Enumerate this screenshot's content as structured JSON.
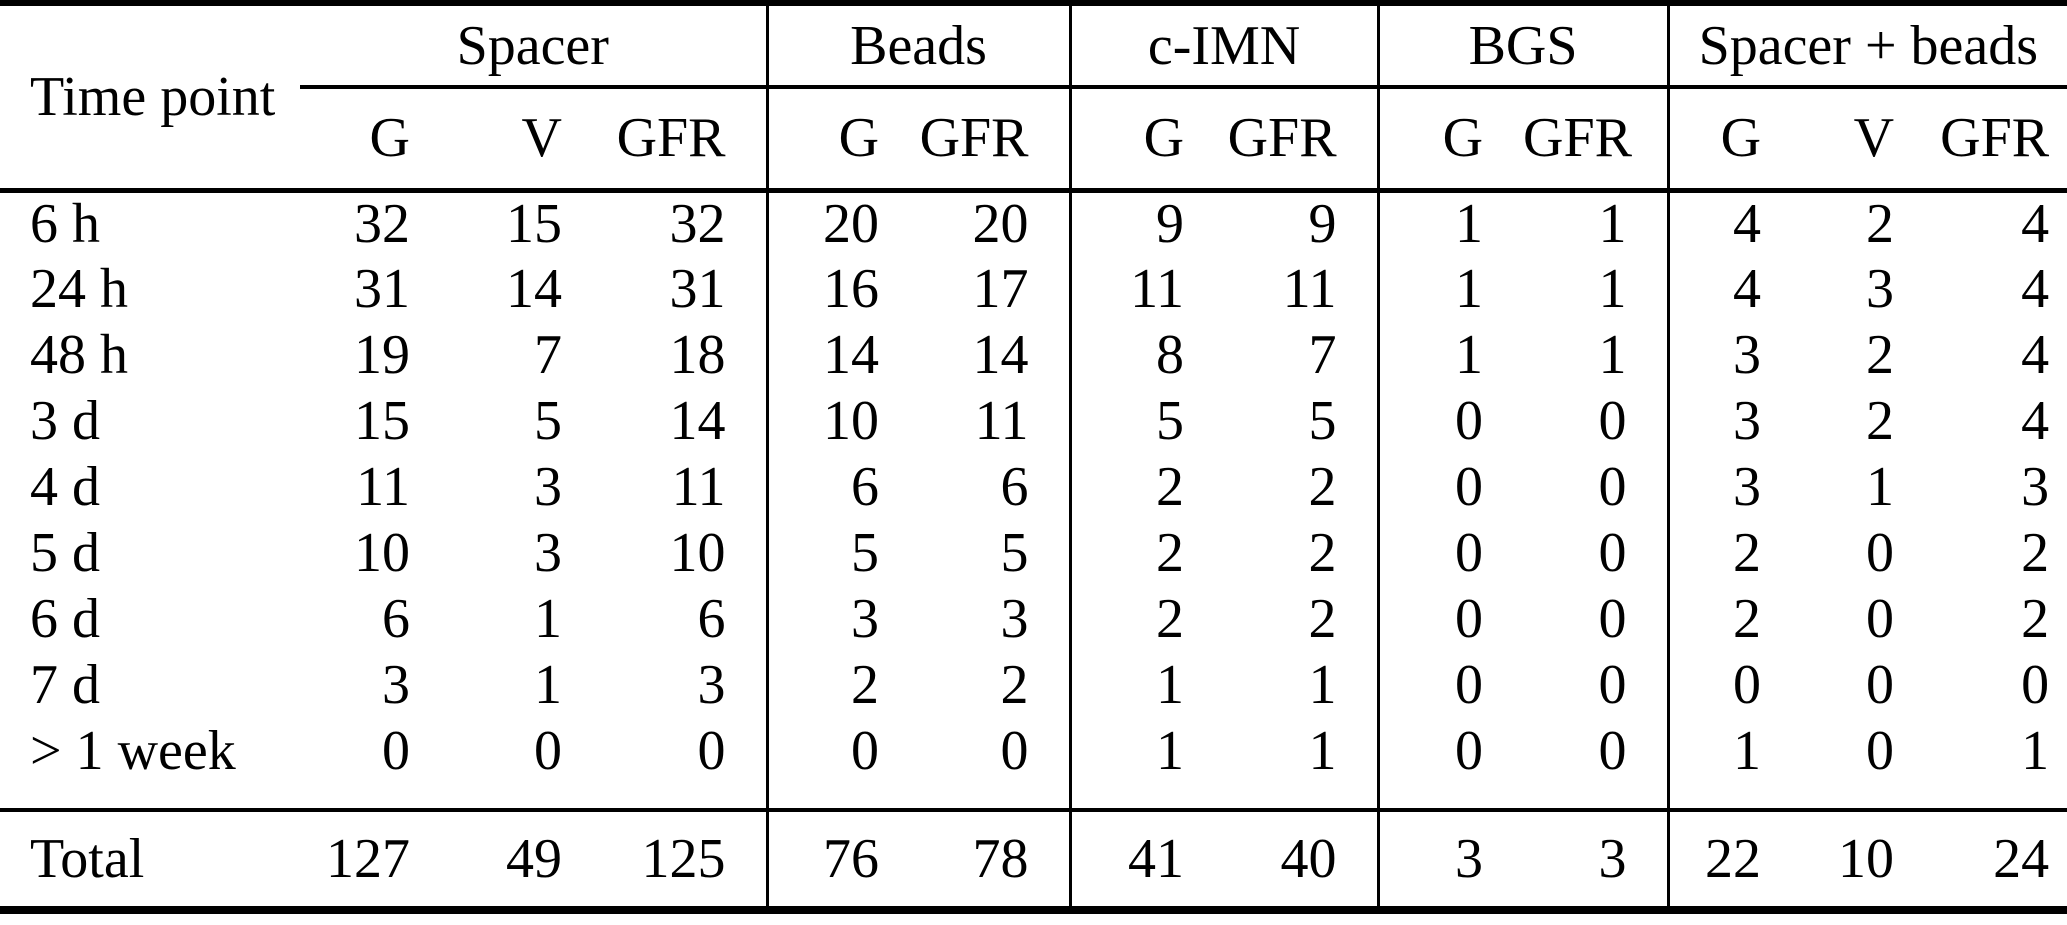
{
  "colors": {
    "text": "#000000",
    "background": "#ffffff",
    "rules": "#000000"
  },
  "table": {
    "row_header_label": "Time point",
    "groups": [
      {
        "label": "Spacer",
        "cols": [
          "G",
          "V",
          "GFR"
        ]
      },
      {
        "label": "Beads",
        "cols": [
          "G",
          "GFR"
        ]
      },
      {
        "label": "c-IMN",
        "cols": [
          "G",
          "GFR"
        ]
      },
      {
        "label": "BGS",
        "cols": [
          "G",
          "GFR"
        ]
      },
      {
        "label": "Spacer + beads",
        "cols": [
          "G",
          "V",
          "GFR"
        ]
      }
    ],
    "rows": [
      {
        "time": "6 h",
        "values": [
          32,
          15,
          32,
          20,
          20,
          9,
          9,
          1,
          1,
          4,
          2,
          4
        ]
      },
      {
        "time": "24 h",
        "values": [
          31,
          14,
          31,
          16,
          17,
          11,
          11,
          1,
          1,
          4,
          3,
          4
        ]
      },
      {
        "time": "48 h",
        "values": [
          19,
          7,
          18,
          14,
          14,
          8,
          7,
          1,
          1,
          3,
          2,
          4
        ]
      },
      {
        "time": "3 d",
        "values": [
          15,
          5,
          14,
          10,
          11,
          5,
          5,
          0,
          0,
          3,
          2,
          4
        ]
      },
      {
        "time": "4 d",
        "values": [
          11,
          3,
          11,
          6,
          6,
          2,
          2,
          0,
          0,
          3,
          1,
          3
        ]
      },
      {
        "time": "5 d",
        "values": [
          10,
          3,
          10,
          5,
          5,
          2,
          2,
          0,
          0,
          2,
          0,
          2
        ]
      },
      {
        "time": "6 d",
        "values": [
          6,
          1,
          6,
          3,
          3,
          2,
          2,
          0,
          0,
          2,
          0,
          2
        ]
      },
      {
        "time": "7 d",
        "values": [
          3,
          1,
          3,
          2,
          2,
          1,
          1,
          0,
          0,
          0,
          0,
          0
        ]
      },
      {
        "time": "> 1 week",
        "values": [
          0,
          0,
          0,
          0,
          0,
          1,
          1,
          0,
          0,
          1,
          0,
          1
        ]
      }
    ],
    "total": {
      "label": "Total",
      "values": [
        127,
        49,
        125,
        76,
        78,
        41,
        40,
        3,
        3,
        22,
        10,
        24
      ]
    }
  }
}
